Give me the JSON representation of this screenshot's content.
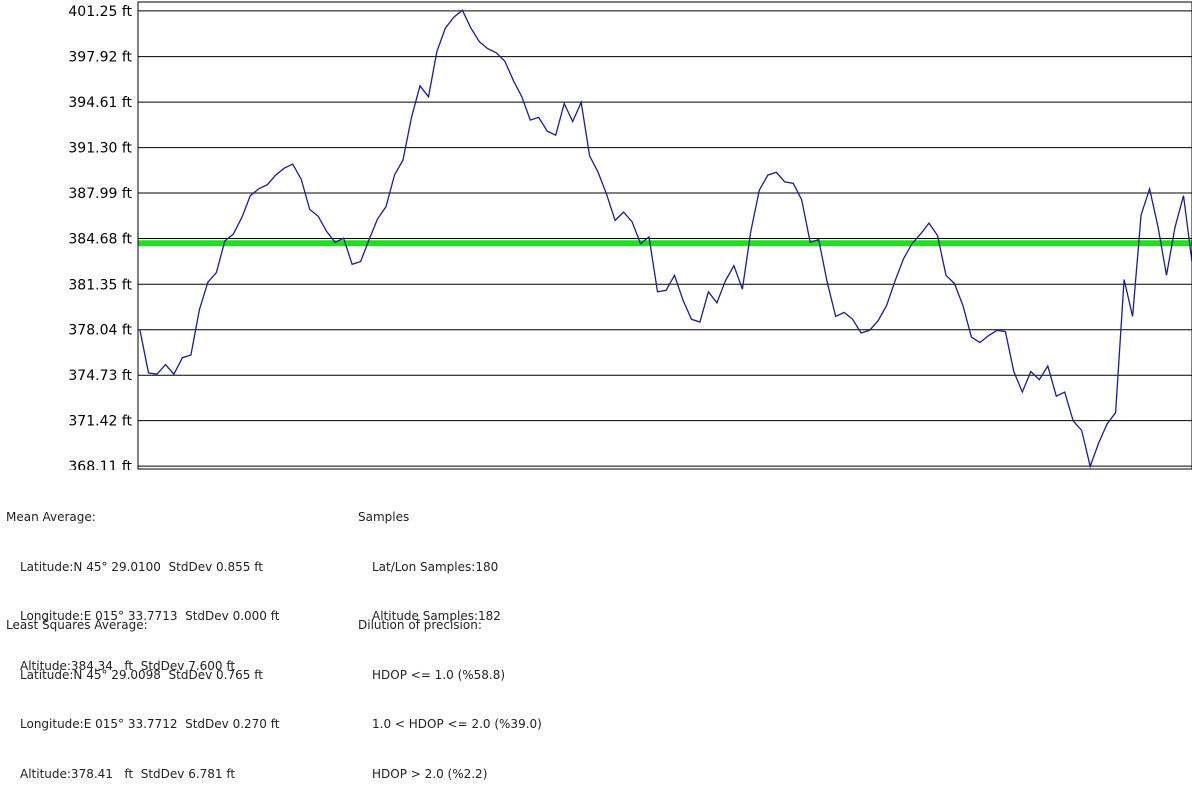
{
  "chart_data": {
    "type": "line",
    "y_tick_labels": [
      "401.25 ft",
      "397.92 ft",
      "394.61 ft",
      "391.30 ft",
      "387.99 ft",
      "384.68 ft",
      "381.35 ft",
      "378.04 ft",
      "374.73 ft",
      "371.42 ft",
      "368.11 ft"
    ],
    "y_ticks": [
      401.25,
      397.92,
      394.61,
      391.3,
      387.99,
      384.68,
      381.35,
      378.04,
      374.73,
      371.42,
      368.11
    ],
    "ylim": [
      367.9,
      401.9
    ],
    "grid": true,
    "mean_line": 384.34,
    "colors": {
      "series": "#1a1f8c",
      "mean": "#22dd22",
      "grid": "#000000"
    },
    "series": [
      {
        "values": [
          378.0,
          374.9,
          374.8,
          375.5,
          374.8,
          376.0,
          376.2,
          379.5,
          381.5,
          382.2,
          384.5,
          385.0,
          386.2,
          387.8,
          388.3,
          388.6,
          389.3,
          389.8,
          390.1,
          389.0,
          386.8,
          386.3,
          385.2,
          384.4,
          384.7,
          382.8,
          383.0,
          384.6,
          386.1,
          387.0,
          389.3,
          390.4,
          393.5,
          395.8,
          395.0,
          398.3,
          400.0,
          400.8,
          401.3,
          400.0,
          399.0,
          398.5,
          398.2,
          397.6,
          396.2,
          395.0,
          393.3,
          393.5,
          392.5,
          392.2,
          394.5,
          393.2,
          394.6,
          390.7,
          389.5,
          387.9,
          386.0,
          386.6,
          385.9,
          384.3,
          384.8,
          380.8,
          380.9,
          382.0,
          380.2,
          378.8,
          378.6,
          380.8,
          380.0,
          381.6,
          382.7,
          381.0,
          385.2,
          388.2,
          389.3,
          389.5,
          388.8,
          388.7,
          387.5,
          384.4,
          384.6,
          381.5,
          379.0,
          379.3,
          378.8,
          377.8,
          378.0,
          378.7,
          379.8,
          381.6,
          383.2,
          384.3,
          385.0,
          385.8,
          384.9,
          382.0,
          381.4,
          379.8,
          377.5,
          377.1,
          377.6,
          378.0,
          377.9,
          375.0,
          373.5,
          375.0,
          374.4,
          375.4,
          373.2,
          373.5,
          371.4,
          370.7,
          368.1,
          369.8,
          371.2,
          372.0,
          381.7,
          379.0,
          386.4,
          388.3,
          385.5,
          382.0,
          385.5,
          387.8,
          383.0
        ]
      }
    ]
  },
  "stats": {
    "mean": {
      "heading": "Mean Average:",
      "latitude": "Latitude:N 45° 29.0100  StdDev 0.855 ft",
      "longitude": "Longitude:E 015° 33.7713  StdDev 0.000 ft",
      "altitude": "Altitude:384.34   ft  StdDev 7.600 ft"
    },
    "least_squares": {
      "heading": "Least Squares Average:",
      "latitude": "Latitude:N 45° 29.0098  StdDev 0.765 ft",
      "longitude": "Longitude:E 015° 33.7712  StdDev 0.270 ft",
      "altitude": "Altitude:378.41   ft  StdDev 6.781 ft"
    },
    "samples": {
      "heading": "Samples",
      "latlon": "Lat/Lon Samples:180",
      "altitude": "Altitude Samples:182"
    },
    "dop": {
      "heading": "Dilution of precision:",
      "line1": "HDOP <= 1.0 (%58.8)",
      "line2": "1.0 < HDOP <= 2.0 (%39.0)",
      "line3": "HDOP > 2.0 (%2.2)"
    }
  }
}
